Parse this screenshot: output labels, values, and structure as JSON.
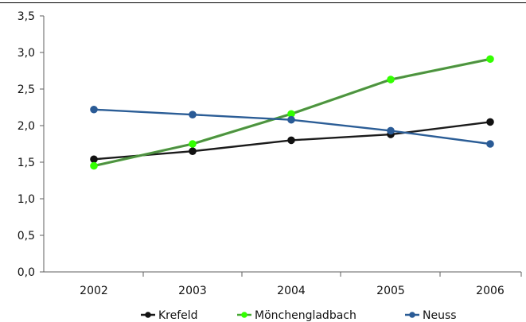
{
  "chart_data": {
    "type": "line",
    "categories": [
      "2002",
      "2003",
      "2004",
      "2005",
      "2006"
    ],
    "y_ticks": [
      "0,0",
      "0,5",
      "1,0",
      "1,5",
      "2,0",
      "2,5",
      "3,0",
      "3,5"
    ],
    "ylim": [
      0,
      3.5
    ],
    "grid": false,
    "legend_position": "bottom",
    "series": [
      {
        "name": "Krefeld",
        "values": [
          1.54,
          1.65,
          1.8,
          1.88,
          2.05
        ],
        "color": "#111111",
        "line_color": "#1b1b1b"
      },
      {
        "name": "Mönchengladbach",
        "values": [
          1.45,
          1.75,
          2.16,
          2.63,
          2.91
        ],
        "color": "#33ff00",
        "line_color": "#49a935"
      },
      {
        "name": "Neuss",
        "values": [
          2.22,
          2.15,
          2.08,
          1.93,
          1.75
        ],
        "color": "#2a5b96",
        "line_color": "#2b5d96"
      }
    ]
  }
}
